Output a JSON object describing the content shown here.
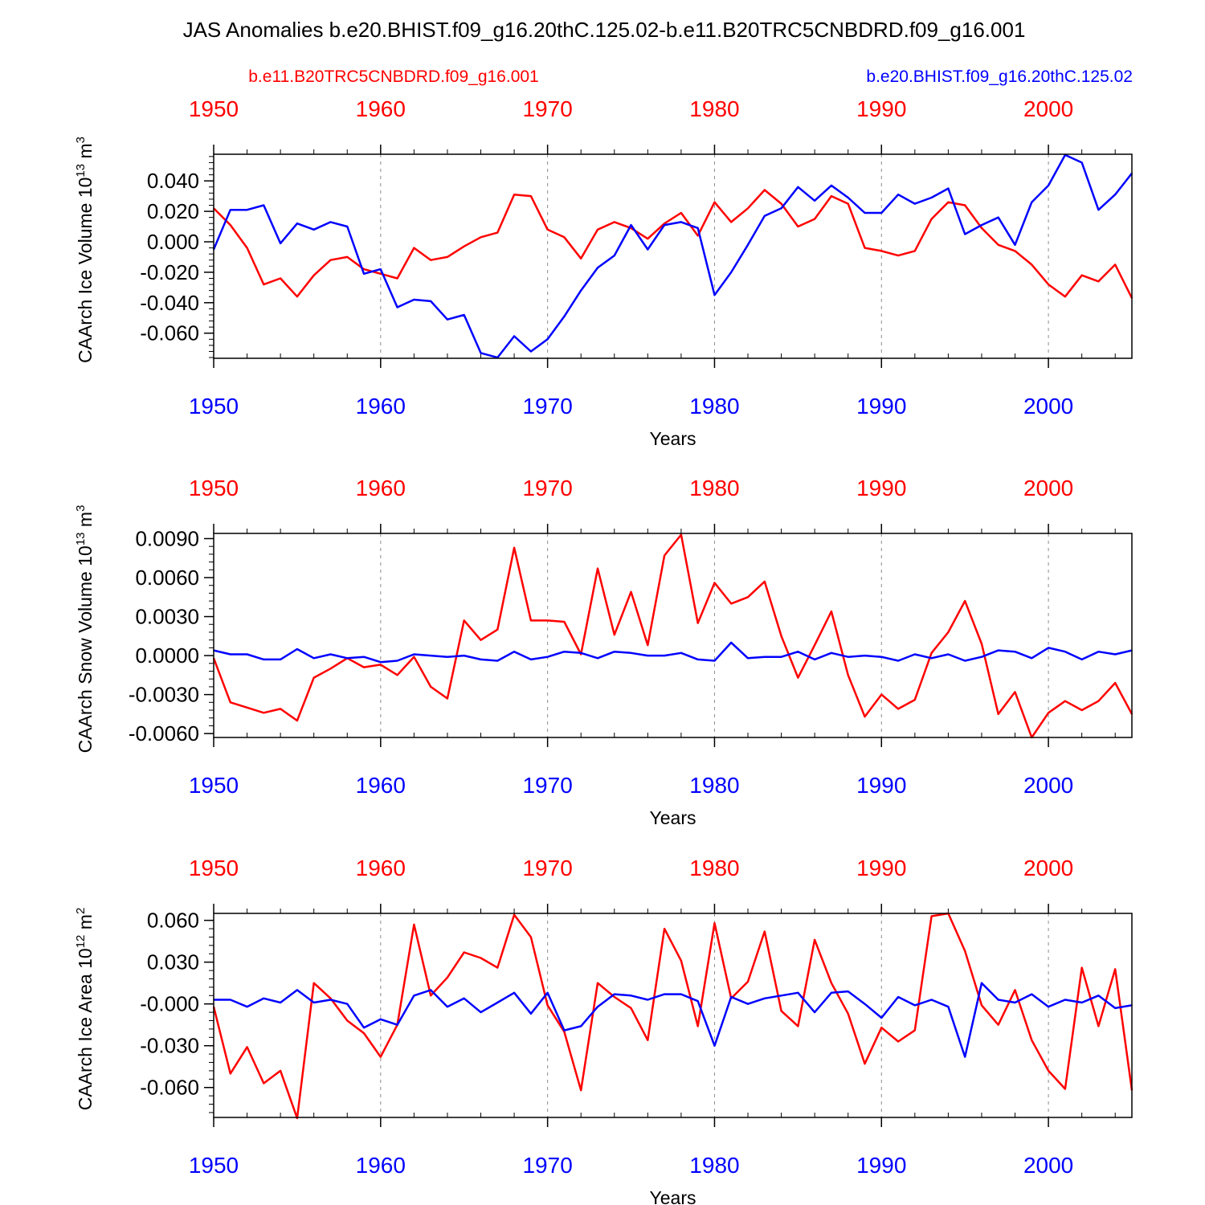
{
  "title": "JAS Anomalies b.e20.BHIST.f09_g16.20thC.125.02-b.e11.B20TRC5CNBDRD.f09_g16.001",
  "legend": {
    "left_label": "b.e11.B20TRC5CNBDRD.f09_g16.001",
    "right_label": "b.e20.BHIST.f09_g16.20thC.125.02"
  },
  "colors": {
    "series_a": "#ff0000",
    "series_b": "#0000ff",
    "axis": "#000000",
    "grid": "#8c8c8c"
  },
  "years": [
    1950,
    1951,
    1952,
    1953,
    1954,
    1955,
    1956,
    1957,
    1958,
    1959,
    1960,
    1961,
    1962,
    1963,
    1964,
    1965,
    1966,
    1967,
    1968,
    1969,
    1970,
    1971,
    1972,
    1973,
    1974,
    1975,
    1976,
    1977,
    1978,
    1979,
    1980,
    1981,
    1982,
    1983,
    1984,
    1985,
    1986,
    1987,
    1988,
    1989,
    1990,
    1991,
    1992,
    1993,
    1994,
    1995,
    1996,
    1997,
    1998,
    1999,
    2000,
    2001,
    2002,
    2003,
    2004,
    2005
  ],
  "chart_data": [
    {
      "type": "line",
      "ylabel": "CAArch Ice Volume",
      "unit": "10^13 m^3",
      "unit_base": "10",
      "unit_exp": "13",
      "unit_tail": "m",
      "unit_tail_exp": "3",
      "xlabel": "Years",
      "xlim": [
        1950,
        2005
      ],
      "ylim": [
        -0.0765,
        0.0575
      ],
      "yticks": [
        0.04,
        0.02,
        0.0,
        -0.02,
        -0.04,
        -0.06
      ],
      "ytick_labels": [
        "0.040",
        "0.020",
        "0.000",
        "-0.020",
        "-0.040",
        "-0.060"
      ],
      "xticks": [
        1950,
        1960,
        1970,
        1980,
        1990,
        2000
      ],
      "xtick_labels": [
        "1950",
        "1960",
        "1970",
        "1980",
        "1990",
        "2000"
      ],
      "grid": "vertical-dashed",
      "series": [
        {
          "name": "b.e11.B20TRC5CNBDRD.f09_g16.001",
          "color": "#ff0000",
          "values": [
            0.022,
            0.011,
            -0.004,
            -0.028,
            -0.024,
            -0.036,
            -0.022,
            -0.012,
            -0.01,
            -0.018,
            -0.021,
            -0.024,
            -0.004,
            -0.012,
            -0.01,
            -0.003,
            0.003,
            0.006,
            0.031,
            0.03,
            0.008,
            0.003,
            -0.011,
            0.008,
            0.013,
            0.009,
            0.002,
            0.012,
            0.019,
            0.004,
            0.026,
            0.013,
            0.022,
            0.034,
            0.025,
            0.01,
            0.015,
            0.03,
            0.025,
            -0.004,
            -0.006,
            -0.009,
            -0.006,
            0.015,
            0.026,
            0.024,
            0.009,
            -0.002,
            -0.006,
            -0.015,
            -0.028,
            -0.036,
            -0.022,
            -0.026,
            -0.015,
            -0.037
          ]
        },
        {
          "name": "b.e20.BHIST.f09_g16.20thC.125.02",
          "color": "#0000ff",
          "values": [
            -0.005,
            0.021,
            0.021,
            0.024,
            -0.001,
            0.012,
            0.008,
            0.013,
            0.01,
            -0.021,
            -0.018,
            -0.043,
            -0.038,
            -0.039,
            -0.051,
            -0.048,
            -0.073,
            -0.076,
            -0.062,
            -0.072,
            -0.064,
            -0.049,
            -0.032,
            -0.017,
            -0.009,
            0.011,
            -0.005,
            0.011,
            0.013,
            0.009,
            -0.035,
            -0.02,
            -0.002,
            0.017,
            0.022,
            0.036,
            0.027,
            0.037,
            0.029,
            0.019,
            0.019,
            0.031,
            0.025,
            0.029,
            0.035,
            0.005,
            0.011,
            0.016,
            -0.002,
            0.026,
            0.037,
            0.057,
            0.052,
            0.021,
            0.031,
            0.045
          ]
        }
      ]
    },
    {
      "type": "line",
      "ylabel": "CAArch Snow Volume",
      "unit": "10^13 m^3",
      "unit_base": "10",
      "unit_exp": "13",
      "unit_tail": "m",
      "unit_tail_exp": "3",
      "xlabel": "Years",
      "xlim": [
        1950,
        2005
      ],
      "ylim": [
        -0.0063,
        0.0094
      ],
      "yticks": [
        0.009,
        0.006,
        0.003,
        0.0,
        -0.003,
        -0.006
      ],
      "ytick_labels": [
        "0.0090",
        "0.0060",
        "0.0030",
        "0.0000",
        "-0.0030",
        "-0.0060"
      ],
      "xticks": [
        1950,
        1960,
        1970,
        1980,
        1990,
        2000
      ],
      "xtick_labels": [
        "1950",
        "1960",
        "1970",
        "1980",
        "1990",
        "2000"
      ],
      "grid": "vertical-dashed",
      "series": [
        {
          "name": "b.e11.B20TRC5CNBDRD.f09_g16.001",
          "color": "#ff0000",
          "values": [
            -0.0002,
            -0.0036,
            -0.004,
            -0.0044,
            -0.0041,
            -0.005,
            -0.0017,
            -0.001,
            -0.0002,
            -0.0009,
            -0.0007,
            -0.0015,
            -0.0001,
            -0.0024,
            -0.0033,
            0.0027,
            0.0012,
            0.002,
            0.0083,
            0.0027,
            0.0027,
            0.0026,
            0.0001,
            0.0067,
            0.0016,
            0.0049,
            0.0008,
            0.0077,
            0.0093,
            0.0025,
            0.0056,
            0.004,
            0.0045,
            0.0057,
            0.0015,
            -0.0017,
            0.0008,
            0.0034,
            -0.0015,
            -0.0047,
            -0.003,
            -0.0041,
            -0.0034,
            0.0002,
            0.0018,
            0.0042,
            0.0009,
            -0.0045,
            -0.0028,
            -0.0063,
            -0.0044,
            -0.0035,
            -0.0042,
            -0.0035,
            -0.0021,
            -0.0045
          ]
        },
        {
          "name": "b.e20.BHIST.f09_g16.20thC.125.02",
          "color": "#0000ff",
          "values": [
            0.0004,
            0.0001,
            0.0001,
            -0.0003,
            -0.0003,
            0.0005,
            -0.0002,
            0.0001,
            -0.0002,
            -0.0001,
            -0.0005,
            -0.0004,
            0.0001,
            0.0,
            -0.0001,
            0.0,
            -0.0003,
            -0.0004,
            0.0003,
            -0.0003,
            -0.0001,
            0.0003,
            0.0002,
            -0.0002,
            0.0003,
            0.0002,
            0.0,
            0.0,
            0.0002,
            -0.0003,
            -0.0004,
            0.001,
            -0.0002,
            -0.0001,
            -0.0001,
            0.0003,
            -0.0003,
            0.0002,
            -0.0001,
            0.0,
            -0.0001,
            -0.0004,
            0.0001,
            -0.0002,
            0.0001,
            -0.0004,
            -0.0001,
            0.0004,
            0.0003,
            -0.0002,
            0.0006,
            0.0003,
            -0.0003,
            0.0003,
            0.0001,
            0.0004
          ]
        }
      ]
    },
    {
      "type": "line",
      "ylabel": "CAArch Ice Area",
      "unit": "10^12 m^2",
      "unit_base": "10",
      "unit_exp": "12",
      "unit_tail": "m",
      "unit_tail_exp": "2",
      "xlabel": "Years",
      "xlim": [
        1950,
        2005
      ],
      "ylim": [
        -0.0815,
        0.065
      ],
      "yticks": [
        0.06,
        0.03,
        0.0,
        -0.03,
        -0.06
      ],
      "ytick_labels": [
        "0.060",
        "0.030",
        "-0.000",
        "-0.030",
        "-0.060"
      ],
      "xticks": [
        1950,
        1960,
        1970,
        1980,
        1990,
        2000
      ],
      "xtick_labels": [
        "1950",
        "1960",
        "1970",
        "1980",
        "1990",
        "2000"
      ],
      "grid": "vertical-dashed",
      "series": [
        {
          "name": "b.e11.B20TRC5CNBDRD.f09_g16.001",
          "color": "#ff0000",
          "values": [
            -0.002,
            -0.05,
            -0.031,
            -0.057,
            -0.048,
            -0.082,
            0.015,
            0.004,
            -0.012,
            -0.021,
            -0.038,
            -0.015,
            0.057,
            0.006,
            0.019,
            0.037,
            0.033,
            0.026,
            0.064,
            0.048,
            -0.001,
            -0.02,
            -0.062,
            0.015,
            0.005,
            -0.003,
            -0.026,
            0.054,
            0.031,
            -0.016,
            0.058,
            0.004,
            0.016,
            0.052,
            -0.005,
            -0.016,
            0.046,
            0.015,
            -0.007,
            -0.043,
            -0.017,
            -0.027,
            -0.019,
            0.063,
            0.065,
            0.038,
            -0.001,
            -0.015,
            0.01,
            -0.026,
            -0.048,
            -0.061,
            0.026,
            -0.016,
            0.025,
            -0.062
          ]
        },
        {
          "name": "b.e20.BHIST.f09_g16.20thC.125.02",
          "color": "#0000ff",
          "values": [
            0.003,
            0.003,
            -0.002,
            0.004,
            0.001,
            0.01,
            0.001,
            0.003,
            0.0,
            -0.017,
            -0.011,
            -0.015,
            0.006,
            0.01,
            -0.002,
            0.004,
            -0.006,
            0.001,
            0.008,
            -0.007,
            0.008,
            -0.019,
            -0.016,
            -0.002,
            0.007,
            0.006,
            0.003,
            0.007,
            0.007,
            0.002,
            -0.03,
            0.005,
            0.0,
            0.004,
            0.006,
            0.008,
            -0.006,
            0.008,
            0.009,
            0.0,
            -0.01,
            0.005,
            -0.001,
            0.003,
            -0.002,
            -0.038,
            0.015,
            0.003,
            0.001,
            0.007,
            -0.002,
            0.003,
            0.001,
            0.006,
            -0.003,
            -0.001
          ]
        }
      ]
    }
  ]
}
